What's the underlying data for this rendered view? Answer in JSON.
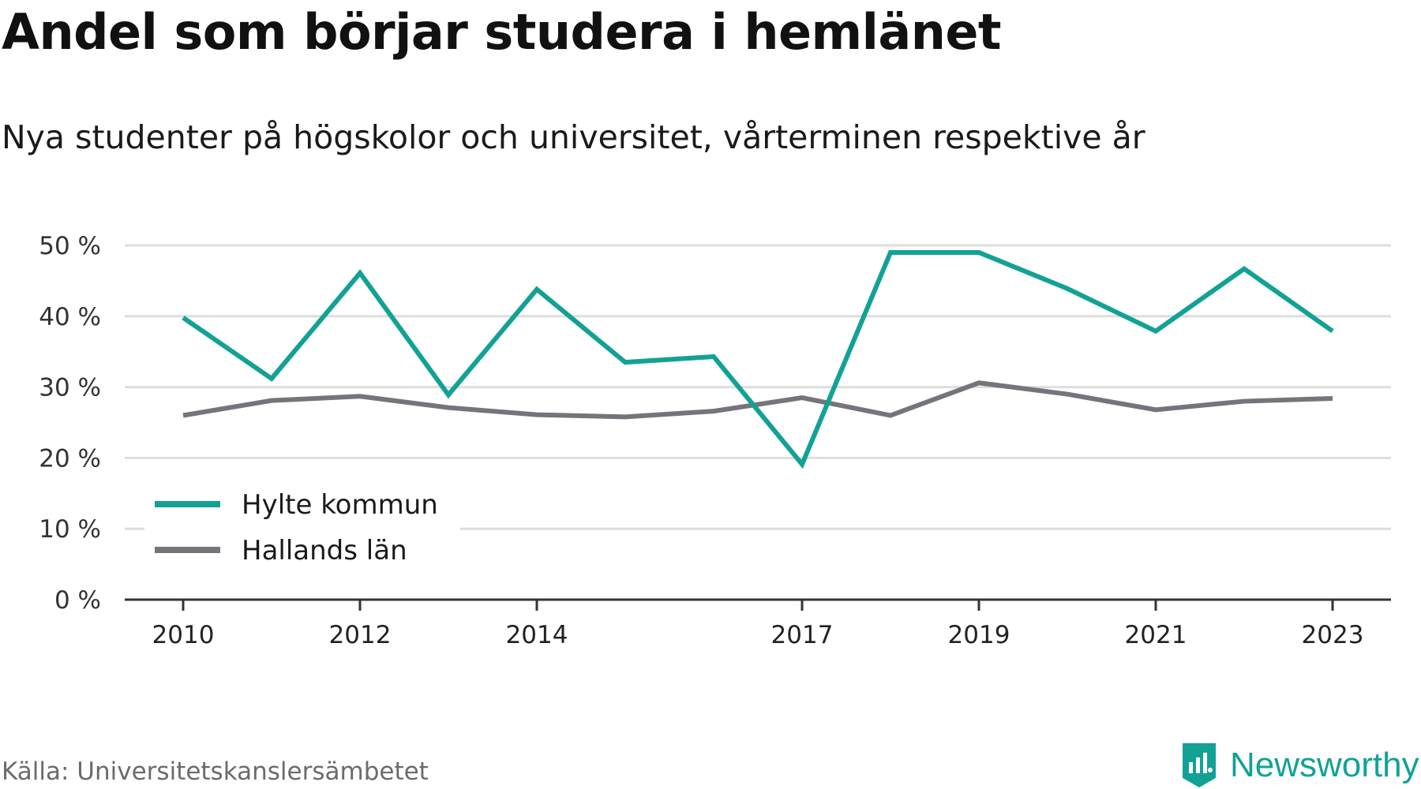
{
  "title": "Andel som börjar studera i hemlänet",
  "subtitle": "Nya studenter på högskolor och universitet, vårterminen respektive år",
  "source": "Källa: Universitetskanslersämbetet",
  "brand": "Newsworthy",
  "colors": {
    "hylte": "#12a295",
    "halland": "#76747b",
    "grid": "#dddddd",
    "axis": "#333333",
    "brand": "#12a295"
  },
  "chart_data": {
    "type": "line",
    "x": [
      2010,
      2011,
      2012,
      2013,
      2014,
      2015,
      2016,
      2017,
      2018,
      2019,
      2020,
      2021,
      2022,
      2023
    ],
    "x_tick_labels": [
      "2010",
      "2012",
      "2014",
      "2017",
      "2019",
      "2021",
      "2023"
    ],
    "y_ticks": [
      0,
      10,
      20,
      30,
      40,
      50
    ],
    "y_tick_labels": [
      "0 %",
      "10 %",
      "20 %",
      "30 %",
      "40 %",
      "50 %"
    ],
    "ylim": [
      0,
      50
    ],
    "grid": true,
    "legend_position": "bottom-left",
    "series": [
      {
        "name": "Hylte kommun",
        "values": [
          39.8,
          31.2,
          46.1,
          28.9,
          43.8,
          33.5,
          34.3,
          19.1,
          49.0,
          49.0,
          43.9,
          37.9,
          46.7,
          37.9
        ]
      },
      {
        "name": "Hallands län",
        "values": [
          26.0,
          28.1,
          28.7,
          27.1,
          26.1,
          25.8,
          26.6,
          28.5,
          26.0,
          30.6,
          29.0,
          26.8,
          28.0,
          28.4
        ]
      }
    ]
  }
}
